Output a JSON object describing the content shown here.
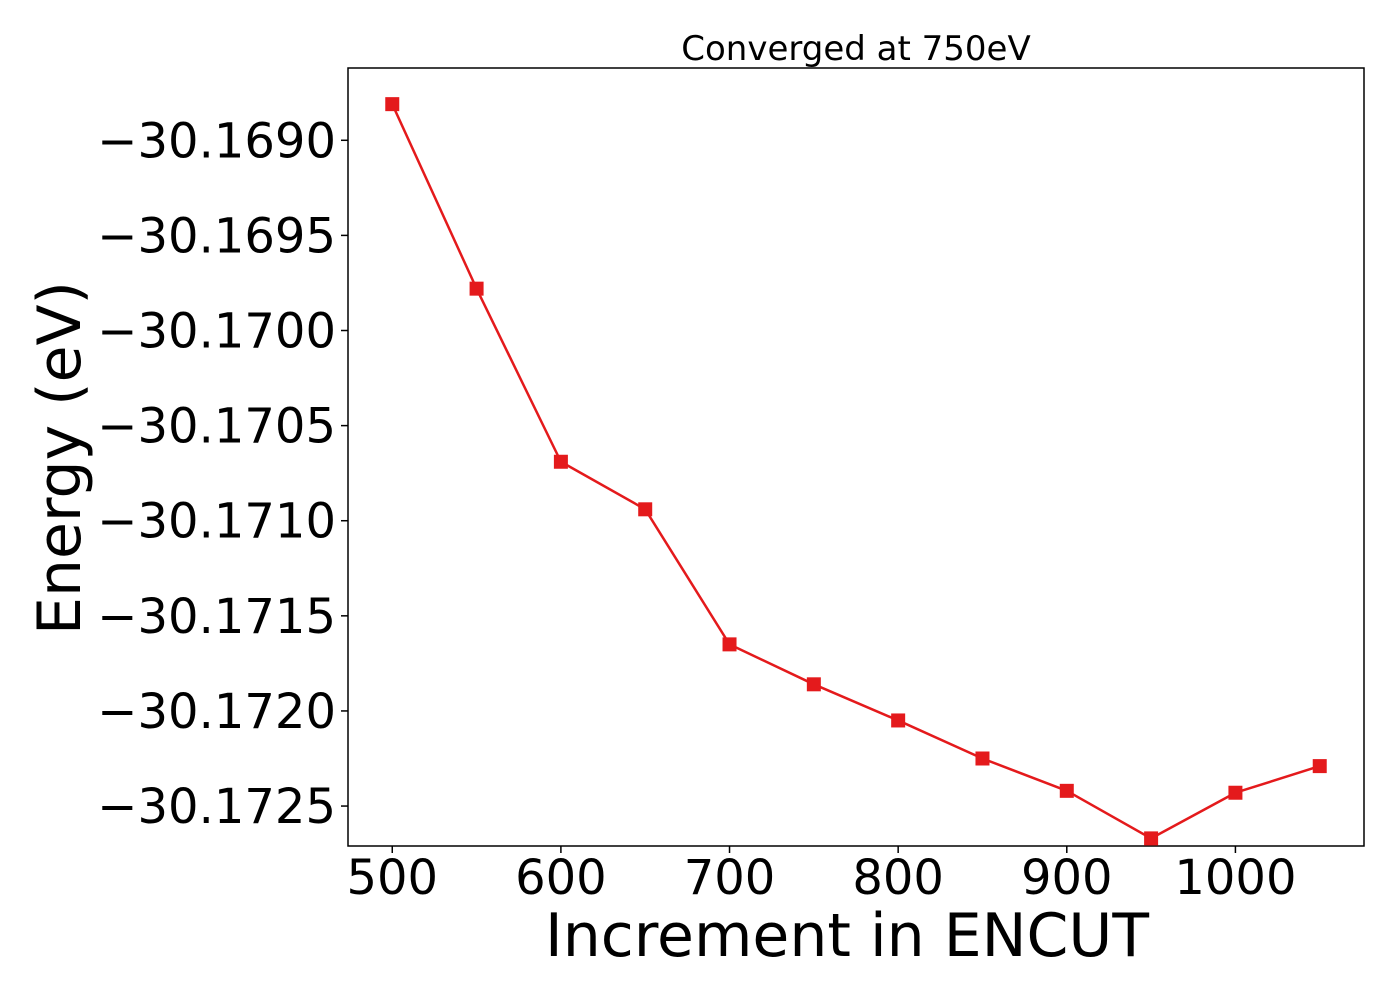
{
  "colors": {
    "series": "#e41a1c",
    "axis": "#000000",
    "background": "#ffffff"
  },
  "chart_data": {
    "type": "line",
    "title": "Converged at 750eV",
    "xlabel": "Increment in ENCUT",
    "ylabel": "Energy (eV)",
    "xlim": [
      473.75,
      1076.25
    ],
    "ylim": [
      -30.17271,
      -30.16862
    ],
    "xticks": [
      500,
      600,
      700,
      800,
      900,
      1000
    ],
    "xtick_labels": [
      "500",
      "600",
      "700",
      "800",
      "900",
      "1000"
    ],
    "yticks": [
      -30.169,
      -30.1695,
      -30.17,
      -30.1705,
      -30.171,
      -30.1715,
      -30.172,
      -30.1725
    ],
    "ytick_labels": [
      "−30.1690",
      "−30.1695",
      "−30.1700",
      "−30.1705",
      "−30.1710",
      "−30.1715",
      "−30.1720",
      "−30.1725"
    ],
    "grid": false,
    "marker": "square",
    "series": [
      {
        "x": [
          500,
          550,
          600,
          650,
          700,
          750,
          800,
          850,
          900,
          950,
          1000,
          1050
        ],
        "values": [
          -30.16881,
          -30.16978,
          -30.17069,
          -30.17094,
          -30.17165,
          -30.17186,
          -30.17205,
          -30.17225,
          -30.17242,
          -30.17267,
          -30.17243,
          -30.17229
        ]
      }
    ]
  }
}
